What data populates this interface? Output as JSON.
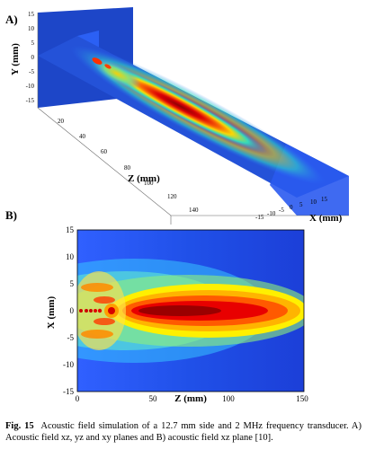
{
  "figure": {
    "label_a": "A)",
    "label_b": "B)",
    "caption_label": "Fig. 15",
    "caption_text": "Acoustic field simulation of a 12.7 mm side and 2 MHz frequency transducer. A) Acoustic field xz, yz and xy planes and B) acoustic field xz plane [10]."
  },
  "chart_data": [
    {
      "type": "heatmap",
      "title": "",
      "view": "3d",
      "ylabel": "Y (mm)",
      "zlabel": "Z (mm)",
      "xlabel": "X (mm)",
      "y_ticks": [
        "15",
        "10",
        "5",
        "0",
        "-5",
        "-10",
        "-15"
      ],
      "z_ticks": [
        "20",
        "40",
        "60",
        "80",
        "100",
        "120",
        "140"
      ],
      "x_ticks": [
        "-15",
        "-10",
        "-5",
        "0",
        "5",
        "10",
        "15"
      ],
      "colormap": "jet"
    },
    {
      "type": "heatmap",
      "title": "",
      "xlabel": "Z (mm)",
      "ylabel": "X (mm)",
      "x_ticks": [
        "0",
        "50",
        "100",
        "150"
      ],
      "y_ticks": [
        "15",
        "10",
        "5",
        "0",
        "-5",
        "-10",
        "-15"
      ],
      "xlim": [
        0,
        150
      ],
      "ylim": [
        -15,
        15
      ],
      "colormap": "jet"
    }
  ]
}
